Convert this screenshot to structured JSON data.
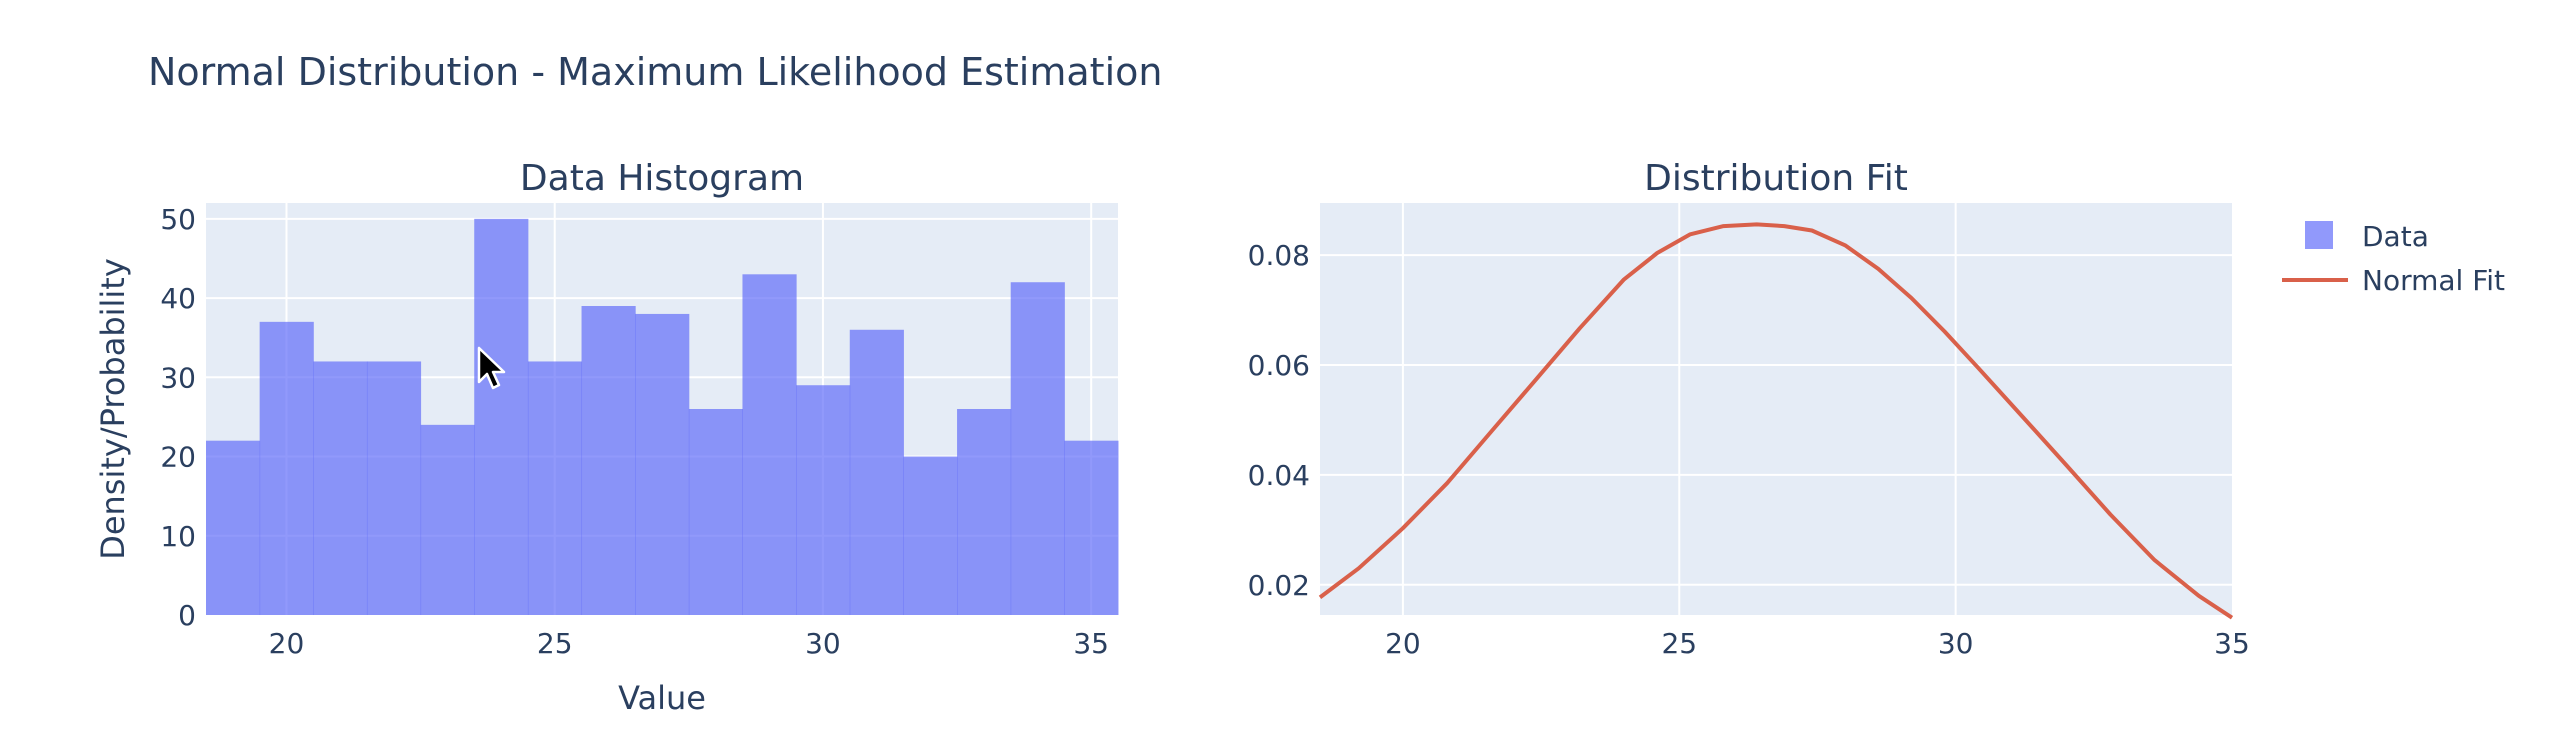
{
  "figure": {
    "title": "Normal Distribution - Maximum Likelihood Estimation"
  },
  "chart_data": [
    {
      "type": "bar",
      "title": "Data Histogram",
      "xlabel": "Value",
      "ylabel": "Density/Probability",
      "xlim": [
        18.5,
        35.5
      ],
      "ylim": [
        0,
        52
      ],
      "xticks": [
        20,
        25,
        30,
        35
      ],
      "yticks": [
        0,
        10,
        20,
        30,
        40,
        50
      ],
      "bins": [
        {
          "x0": 18.5,
          "x1": 19.5,
          "value": 22
        },
        {
          "x0": 19.5,
          "x1": 20.5,
          "value": 37
        },
        {
          "x0": 20.5,
          "x1": 21.5,
          "value": 32
        },
        {
          "x0": 21.5,
          "x1": 22.5,
          "value": 32
        },
        {
          "x0": 22.5,
          "x1": 23.5,
          "value": 24
        },
        {
          "x0": 23.5,
          "x1": 24.5,
          "value": 50
        },
        {
          "x0": 24.5,
          "x1": 25.5,
          "value": 32
        },
        {
          "x0": 25.5,
          "x1": 26.5,
          "value": 39
        },
        {
          "x0": 26.5,
          "x1": 27.5,
          "value": 38
        },
        {
          "x0": 27.5,
          "x1": 28.5,
          "value": 26
        },
        {
          "x0": 28.5,
          "x1": 29.5,
          "value": 43
        },
        {
          "x0": 29.5,
          "x1": 30.5,
          "value": 29
        },
        {
          "x0": 30.5,
          "x1": 31.5,
          "value": 36
        },
        {
          "x0": 31.5,
          "x1": 32.5,
          "value": 20
        },
        {
          "x0": 32.5,
          "x1": 33.5,
          "value": 26
        },
        {
          "x0": 33.5,
          "x1": 34.5,
          "value": 42
        },
        {
          "x0": 34.5,
          "x1": 35.5,
          "value": 22
        }
      ],
      "series_name": "Data",
      "color": "#636efa",
      "grid": true
    },
    {
      "type": "line",
      "title": "Distribution Fit",
      "xlim": [
        18.5,
        35
      ],
      "ylim": [
        0.0145,
        0.0895
      ],
      "xticks": [
        20,
        25,
        30,
        35
      ],
      "yticks": [
        0.02,
        0.04,
        0.06,
        0.08
      ],
      "ytick_labels": [
        "0.02",
        "0.04",
        "0.06",
        "0.08"
      ],
      "series": [
        {
          "name": "Normal Fit",
          "color": "#d9604a",
          "x": [
            18.5,
            19.2,
            20.0,
            20.8,
            21.6,
            22.4,
            23.2,
            24.0,
            24.6,
            25.2,
            25.8,
            26.4,
            26.9,
            27.4,
            28.0,
            28.6,
            29.2,
            29.8,
            30.4,
            31.2,
            32.0,
            32.8,
            33.6,
            34.4,
            35.0
          ],
          "y": [
            0.0177,
            0.023,
            0.0303,
            0.0385,
            0.0479,
            0.0573,
            0.0667,
            0.0756,
            0.0804,
            0.0838,
            0.0853,
            0.0856,
            0.0853,
            0.0845,
            0.0818,
            0.0775,
            0.0722,
            0.0661,
            0.0596,
            0.0507,
            0.0418,
            0.0328,
            0.0245,
            0.018,
            0.014
          ]
        }
      ],
      "grid": true
    }
  ],
  "legend": {
    "placement": "right",
    "items": [
      {
        "label": "Data",
        "symbol": "square",
        "color": "#636efa"
      },
      {
        "label": "Normal Fit",
        "symbol": "line",
        "color": "#d9604a"
      }
    ]
  }
}
